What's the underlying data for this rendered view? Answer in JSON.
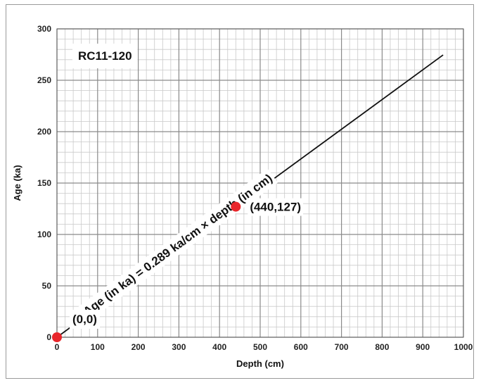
{
  "chart_data": {
    "type": "scatter",
    "title": "RC11-120",
    "xlabel": "Depth (cm)",
    "ylabel": "Age (ka)",
    "xlim": [
      0,
      1000
    ],
    "ylim": [
      0,
      300
    ],
    "x_ticks": [
      0,
      100,
      200,
      300,
      400,
      500,
      600,
      700,
      800,
      900,
      1000
    ],
    "y_ticks": [
      0,
      50,
      100,
      150,
      200,
      250,
      300
    ],
    "x_tick_labels": [
      "0",
      "100",
      "200",
      "300",
      "400",
      "500",
      "600",
      "700",
      "800",
      "900",
      "1000"
    ],
    "y_tick_labels": [
      "0",
      "50",
      "100",
      "150",
      "200",
      "250",
      "300"
    ],
    "grid": true,
    "points": [
      {
        "x": 0,
        "y": 0,
        "label": "(0,0)",
        "color": "#e8262b"
      },
      {
        "x": 440,
        "y": 127,
        "label": "(440,127)",
        "color": "#e8262b"
      }
    ],
    "fit_line": {
      "x": [
        0,
        950
      ],
      "y": [
        0,
        274.6
      ],
      "color": "#111111"
    },
    "equation_label": "Age (in ka) = 0.289 ka/cm × depth (in cm)"
  }
}
